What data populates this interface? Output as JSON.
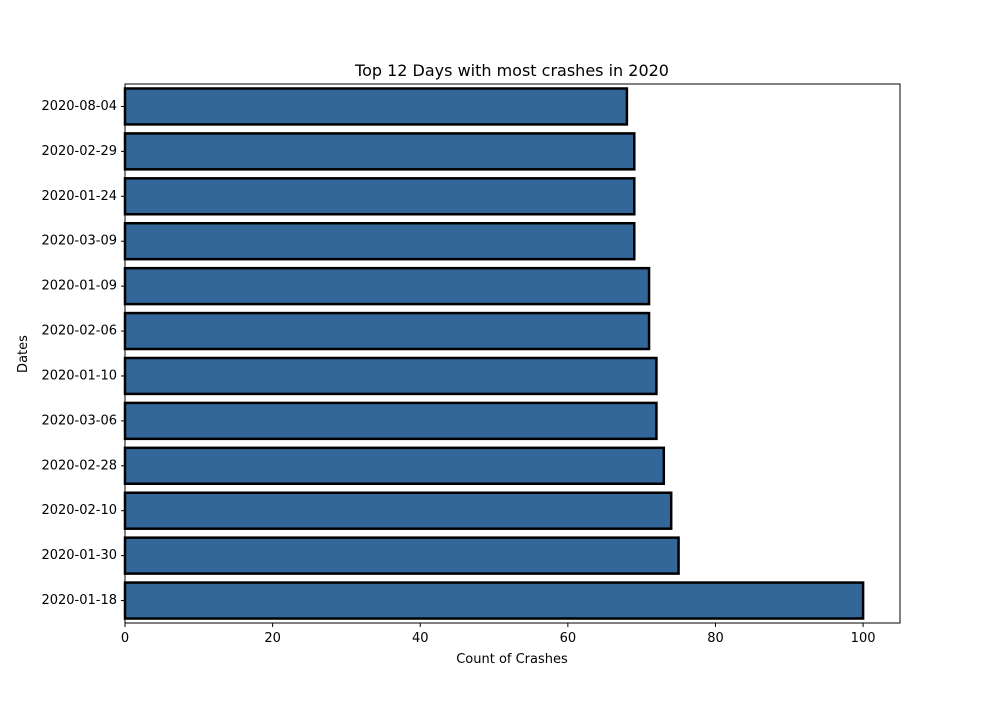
{
  "chart_data": {
    "type": "bar",
    "orientation": "horizontal",
    "title": "Top 12 Days with most crashes in 2020",
    "xlabel": "Count of Crashes",
    "ylabel": "Dates",
    "categories": [
      "2020-01-18",
      "2020-01-30",
      "2020-02-10",
      "2020-02-28",
      "2020-03-06",
      "2020-01-10",
      "2020-02-06",
      "2020-01-09",
      "2020-03-09",
      "2020-01-24",
      "2020-02-29",
      "2020-08-04"
    ],
    "values": [
      100,
      75,
      74,
      73,
      72,
      72,
      71,
      71,
      69,
      69,
      69,
      68
    ],
    "xlim": [
      0,
      105
    ],
    "xticks": [
      0,
      20,
      40,
      60,
      80,
      100
    ],
    "grid": false,
    "bar_color": "#336699",
    "bar_edge_color": "#000000"
  }
}
